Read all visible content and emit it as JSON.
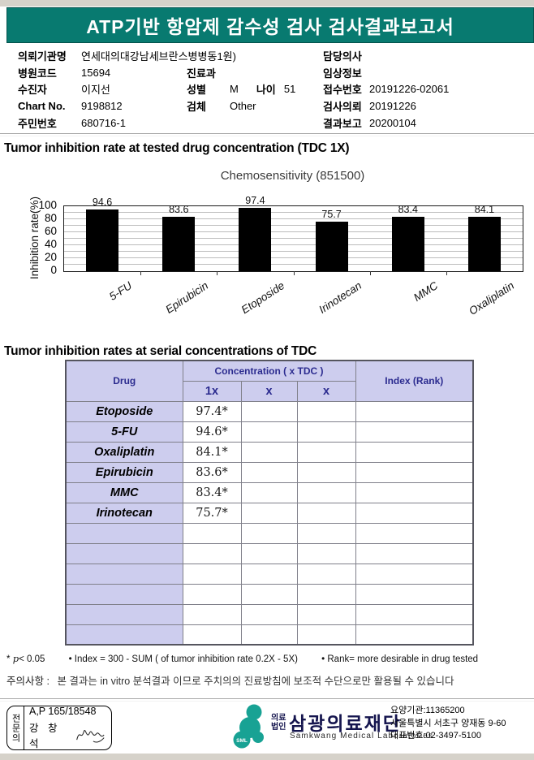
{
  "report": {
    "title": "ATP기반 항암제 감수성 검사 검사결과보고서",
    "section1_title": "Tumor inhibition rate at tested drug concentration (TDC 1X)",
    "section2_title": "Tumor inhibition rates at serial concentrations of TDC"
  },
  "patient": {
    "left": [
      {
        "label": "의뢰기관명",
        "value": "연세대의대강남세브란스병병동1원)"
      },
      {
        "label": "병원코드",
        "value": "15694"
      },
      {
        "label": "수진자",
        "value": "이지선"
      },
      {
        "label": "Chart No.",
        "value": "9198812"
      },
      {
        "label": "주민번호",
        "value": "680716-1"
      }
    ],
    "middle": {
      "dept_label": "진료과",
      "dept_value": "",
      "sex_label": "성별",
      "sex_value": "M",
      "age_label": "나이",
      "age_value": "51",
      "specimen_label": "검체",
      "specimen_value": "Other"
    },
    "right": [
      {
        "label": "담당의사",
        "value": ""
      },
      {
        "label": "임상정보",
        "value": ""
      },
      {
        "label": "접수번호",
        "value": "20191226-02061"
      },
      {
        "label": "검사의뢰",
        "value": "20191226"
      },
      {
        "label": "결과보고",
        "value": "20200104"
      }
    ]
  },
  "chart_data": {
    "type": "bar",
    "title": "Chemosensitivity (851500)",
    "categories": [
      "5-FU",
      "Epirubicin",
      "Etoposide",
      "Irinotecan",
      "MMC",
      "Oxaliplatin"
    ],
    "values": [
      94.6,
      83.6,
      97.4,
      75.7,
      83.4,
      84.1
    ],
    "ylabel": "Inhibition rate(%)",
    "xlabel": "",
    "ylim": [
      0,
      100
    ],
    "yticks": [
      0,
      20,
      40,
      60,
      80,
      100
    ],
    "grid": "horizontal gridlines every 10 units, tick labels every 20",
    "legend": "none",
    "bar_color": "#000000"
  },
  "table": {
    "col_drug": "Drug",
    "col_concentration": "Concentration ( x TDC )",
    "sub_cols": [
      "1x",
      "x",
      "x"
    ],
    "col_index": "Index (Rank)",
    "rows": [
      {
        "drug": "Etoposide",
        "c1": "97.4*",
        "c2": "",
        "c3": "",
        "index": ""
      },
      {
        "drug": "5-FU",
        "c1": "94.6*",
        "c2": "",
        "c3": "",
        "index": ""
      },
      {
        "drug": "Oxaliplatin",
        "c1": "84.1*",
        "c2": "",
        "c3": "",
        "index": ""
      },
      {
        "drug": "Epirubicin",
        "c1": "83.6*",
        "c2": "",
        "c3": "",
        "index": ""
      },
      {
        "drug": "MMC",
        "c1": "83.4*",
        "c2": "",
        "c3": "",
        "index": ""
      },
      {
        "drug": "Irinotecan",
        "c1": "75.7*",
        "c2": "",
        "c3": "",
        "index": ""
      }
    ],
    "empty_row_count": 6
  },
  "footnotes": {
    "sig_star": "*",
    "sig_var": "p",
    "sig_rest": "< 0.05",
    "index_formula": "• Index = 300 - SUM ( of tumor inhibition rate 0.2X  -  5X)",
    "rank_note": "• Rank= more desirable in drug tested",
    "notice_label": "주의사항 :",
    "notice_text": "본 결과는 in vitro 분석결과 이므로 주치의의 진료방침에 보조적 수단으로만 활용될 수 있습니다"
  },
  "footer": {
    "stamp": {
      "role": "전문의",
      "license_no": "A,P 165/18548",
      "doctor_name": "강 창 석"
    },
    "org": {
      "logo_text": "SML",
      "type_top": "의료",
      "type_bottom": "법인",
      "name": "삼광의료재단",
      "name_en": "Samkwang Medical Laboratories",
      "care_org_no": "요양기관:11365200",
      "address": "서울특별시 서초구 양재동 9-60",
      "phone": "대표번호:02-3497-5100"
    }
  },
  "colors": {
    "banner_teal": "#087a70",
    "table_header_lavender": "#cdcdee",
    "table_header_text": "#2b2b8f",
    "bar_black": "#000000",
    "logo_teal": "#18a294",
    "org_name_navy": "#15154e"
  }
}
